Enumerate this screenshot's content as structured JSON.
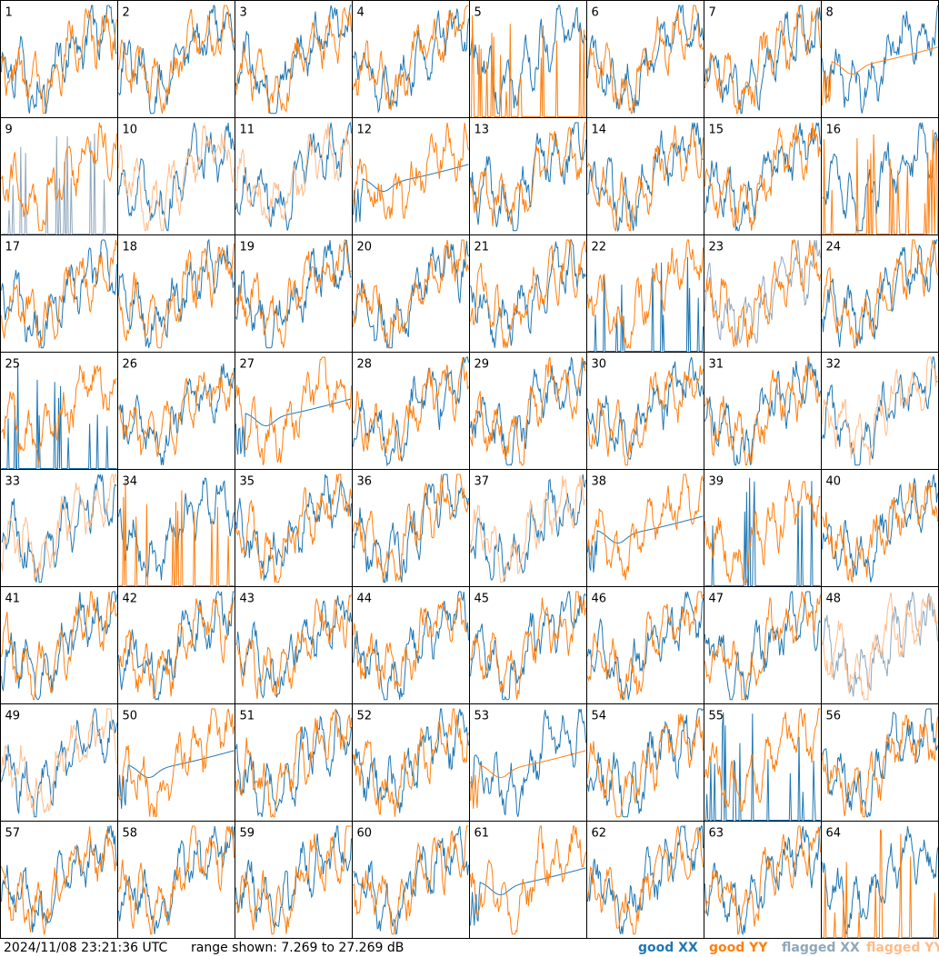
{
  "chart_data": {
    "type": "line",
    "panel_count": 64,
    "columns": 8,
    "panel_labels": [
      "1",
      "2",
      "3",
      "4",
      "5",
      "6",
      "7",
      "8",
      "9",
      "10",
      "11",
      "12",
      "13",
      "14",
      "15",
      "16",
      "17",
      "18",
      "19",
      "20",
      "21",
      "22",
      "23",
      "24",
      "25",
      "26",
      "27",
      "28",
      "29",
      "30",
      "31",
      "32",
      "33",
      "34",
      "35",
      "36",
      "37",
      "38",
      "39",
      "40",
      "41",
      "42",
      "43",
      "44",
      "45",
      "46",
      "47",
      "48",
      "49",
      "50",
      "51",
      "52",
      "53",
      "54",
      "55",
      "56",
      "57",
      "58",
      "59",
      "60",
      "61",
      "62",
      "63",
      "64"
    ],
    "y_range_db": [
      7.269,
      27.269
    ],
    "series": [
      {
        "name": "good XX",
        "color": "#1f77b4"
      },
      {
        "name": "good YY",
        "color": "#ff7f0e"
      },
      {
        "name": "flagged XX",
        "color": "#8fa7bc"
      },
      {
        "name": "flagged YY",
        "color": "#ffbb88"
      }
    ],
    "panel_modes": {
      "flagged_xx": [
        9,
        23
      ],
      "flagged_yy": [
        10,
        11,
        32,
        33,
        37,
        49
      ],
      "flagged_both": [
        48
      ],
      "dropout_yy": [
        5,
        16,
        64,
        34
      ],
      "dropout_xx": [
        9,
        22,
        25,
        39,
        55
      ],
      "smooth_xx": [
        12,
        27,
        38,
        50,
        61
      ],
      "smooth_yy": [
        8,
        53
      ],
      "sparse_yy_xx_good": [
        5,
        16,
        34,
        64
      ]
    }
  },
  "footer": {
    "timestamp": "2024/11/08 23:21:36 UTC",
    "range_text": "range shown: 7.269 to 27.269 dB"
  },
  "legend": {
    "good_xx": "good XX",
    "good_yy": "good YY",
    "flagged_xx": "flagged XX",
    "flagged_yy": "flagged YY"
  }
}
